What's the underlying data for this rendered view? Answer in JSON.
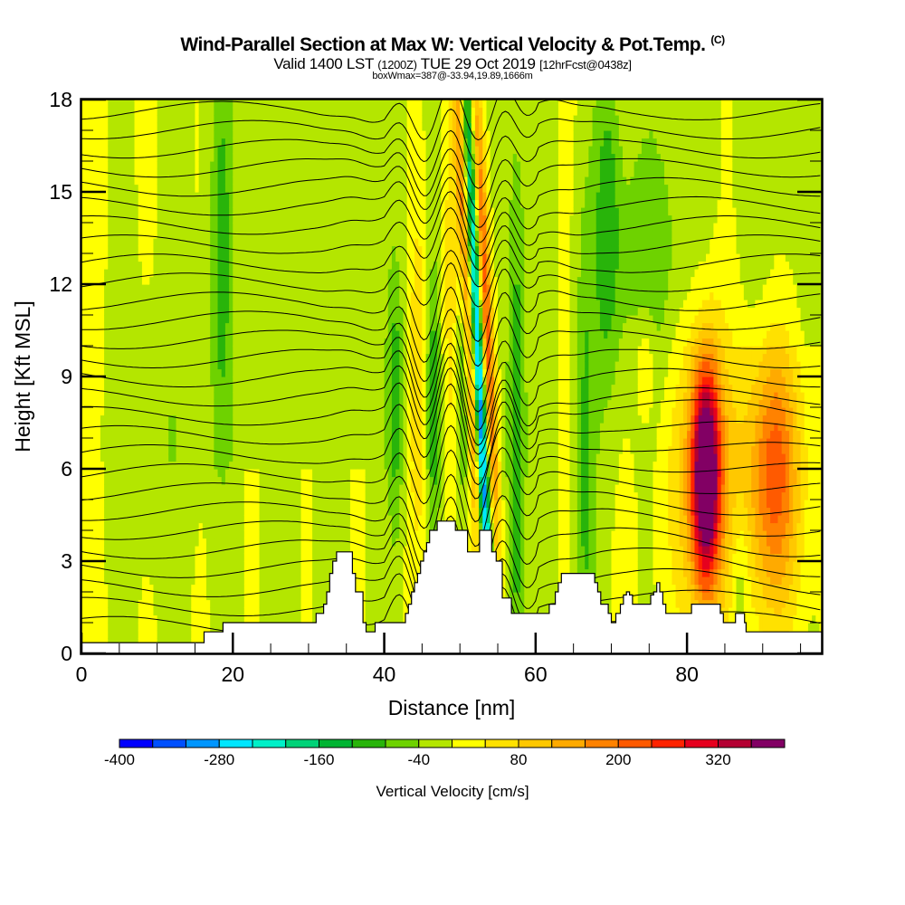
{
  "title": {
    "main": "Wind-Parallel Section at Max W: Vertical Velocity & Pot.Temp.",
    "copyright_mark": "(C)",
    "valid_prefix": "Valid 1400 LST",
    "valid_utc": "(1200Z)",
    "valid_date": "TUE 29 Oct 2019",
    "forecast": "[12hrFcst@0438z]",
    "box_wmax": "boxWmax=387@-33.94,19.89,1666m"
  },
  "chart_data": {
    "type": "heatmap",
    "title": "Wind-Parallel Section at Max W: Vertical Velocity & Pot.Temp.",
    "xlabel": "Distance [nm]",
    "ylabel": "Height [Kft MSL]",
    "xlim": [
      0,
      97.8
    ],
    "ylim": [
      0,
      18
    ],
    "x_ticks": [
      "0",
      "20",
      "40",
      "60",
      "80"
    ],
    "x_tick_values": [
      0,
      20,
      40,
      60,
      80
    ],
    "y_ticks": [
      "0",
      "3",
      "6",
      "9",
      "12",
      "15",
      "18"
    ],
    "y_tick_values": [
      0,
      3,
      6,
      9,
      12,
      15,
      18
    ],
    "colorbar": {
      "label": "Vertical Velocity [cm/s]",
      "min": -400,
      "max": 400,
      "step": 40,
      "tick_labels": [
        "-400",
        "-280",
        "-160",
        "-40",
        "80",
        "200",
        "320"
      ],
      "tick_values": [
        -400,
        -280,
        -160,
        -40,
        80,
        200,
        320
      ],
      "colors": [
        "#0000ff",
        "#0050ff",
        "#0096ff",
        "#00e6ff",
        "#00f0c8",
        "#00d278",
        "#00b432",
        "#28b40a",
        "#6ed200",
        "#b4e600",
        "#ffff00",
        "#ffe100",
        "#ffc800",
        "#ffaa00",
        "#ff8200",
        "#ff5a00",
        "#ff2300",
        "#e6001e",
        "#b40032",
        "#820064"
      ]
    },
    "terrain_profile_kft": {
      "x_nm": [
        0,
        16,
        16.2,
        18.5,
        18.7,
        19.5,
        30.6,
        31.0,
        32.0,
        32.4,
        32.8,
        33.2,
        33.7,
        35.4,
        35.8,
        36.2,
        37.2,
        37.6,
        37.8,
        38.8,
        39.2,
        41.2,
        42.4,
        42.8,
        43.2,
        43.6,
        44.0,
        44.4,
        44.8,
        45.2,
        45.6,
        46.0,
        47.0,
        48.4,
        49.4,
        50.8,
        51.0,
        52.2,
        52.6,
        53.6,
        54.2,
        54.8,
        55.6,
        56.4,
        56.8,
        57.0,
        61.8,
        62.2,
        62.6,
        63.0,
        63.4,
        67.4,
        67.8,
        68.2,
        68.6,
        69.6,
        70.0,
        70.6,
        71.2,
        71.6,
        72.0,
        72.4,
        72.8,
        73.6,
        75.2,
        75.6,
        76.0,
        76.4,
        76.8,
        77.2,
        79.8,
        80.6,
        84.2,
        84.4,
        84.8,
        86.0,
        86.4,
        87.6,
        87.8,
        90.0,
        97.8
      ],
      "height_kft": [
        0.35,
        0.35,
        0.7,
        0.7,
        1.0,
        1.0,
        1.0,
        1.3,
        1.6,
        2.0,
        2.6,
        3.0,
        3.3,
        3.3,
        2.6,
        2.0,
        1.0,
        0.7,
        0.7,
        1.0,
        1.0,
        1.0,
        1.0,
        1.3,
        1.6,
        2.0,
        2.3,
        2.6,
        3.0,
        3.3,
        3.6,
        4.0,
        4.3,
        4.3,
        4.0,
        4.0,
        3.3,
        3.3,
        4.0,
        4.0,
        3.3,
        3.0,
        1.8,
        1.8,
        1.3,
        1.3,
        1.6,
        1.6,
        2.0,
        2.3,
        2.6,
        2.6,
        2.3,
        2.0,
        1.6,
        1.3,
        1.0,
        1.3,
        1.6,
        1.9,
        2.0,
        1.9,
        1.6,
        1.6,
        1.9,
        2.0,
        2.3,
        2.0,
        1.6,
        1.3,
        1.3,
        1.6,
        1.6,
        1.3,
        1.0,
        1.0,
        1.3,
        1.0,
        0.7,
        0.7,
        0.7
      ]
    },
    "wmax_cm_s": 387
  }
}
